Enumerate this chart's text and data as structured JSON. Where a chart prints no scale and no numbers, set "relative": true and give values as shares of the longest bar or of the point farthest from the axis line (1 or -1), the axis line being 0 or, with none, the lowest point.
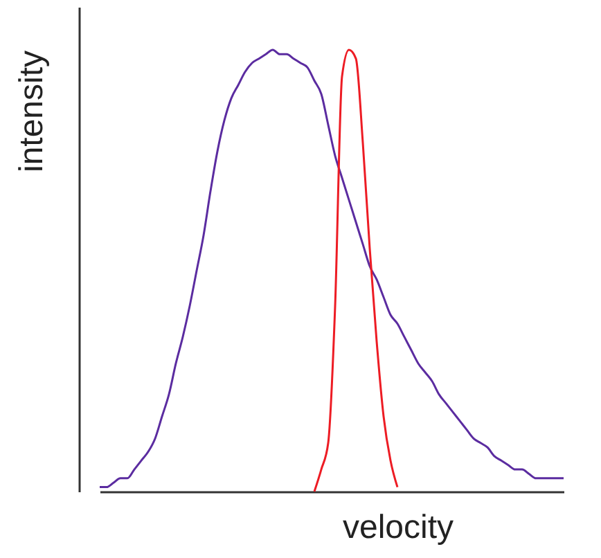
{
  "chart_data": {
    "type": "line",
    "relative": true,
    "xlabel": "velocity",
    "ylabel": "intensity",
    "categories": [
      null,
      null,
      null,
      null,
      null,
      null,
      null,
      null,
      null,
      null,
      null,
      null,
      null,
      null,
      null,
      null,
      null,
      null,
      null,
      null,
      null,
      null,
      null,
      null,
      null,
      null,
      null,
      null,
      null,
      null,
      null,
      null,
      null,
      null,
      null,
      null,
      null,
      null,
      null,
      null,
      null,
      null,
      null,
      null,
      null,
      null,
      null,
      null,
      null,
      null,
      null,
      null,
      null,
      null,
      null,
      null,
      null,
      null,
      null,
      null,
      null,
      null,
      null,
      null,
      null,
      null,
      null,
      null
    ],
    "series": [
      {
        "color": "#5b2ca0",
        "values": [
          0.01,
          0.01,
          0.02,
          0.03,
          0.03,
          0.05,
          0.07,
          0.09,
          0.12,
          0.17,
          0.22,
          0.29,
          0.35,
          0.42,
          0.5,
          0.58,
          0.68,
          0.77,
          0.84,
          0.89,
          0.92,
          0.95,
          0.97,
          0.98,
          0.99,
          1,
          0.99,
          0.99,
          0.98,
          0.97,
          0.96,
          0.93,
          0.9,
          0.83,
          0.76,
          0.71,
          0.66,
          0.61,
          0.56,
          0.51,
          0.48,
          0.44,
          0.4,
          0.38,
          0.35,
          0.32,
          0.29,
          0.27,
          0.25,
          0.22,
          0.2,
          0.18,
          0.16,
          0.14,
          0.12,
          0.11,
          0.1,
          0.08,
          0.07,
          0.06,
          0.05,
          0.05,
          0.04,
          0.03,
          0.03,
          0.03,
          0.03,
          0.03
        ]
      },
      {
        "color": "#ed1c24",
        "values": [
          null,
          null,
          null,
          null,
          null,
          null,
          null,
          null,
          null,
          null,
          null,
          null,
          null,
          null,
          null,
          null,
          null,
          null,
          null,
          null,
          null,
          null,
          null,
          null,
          null,
          null,
          null,
          null,
          null,
          null,
          null,
          0,
          0.05,
          0.11,
          0.42,
          0.94,
          1,
          0.98,
          0.79,
          0.55,
          0.34,
          0.17,
          0.07,
          0.01,
          null,
          null,
          null,
          null,
          null,
          null,
          null,
          null,
          null,
          null,
          null,
          null,
          null,
          null,
          null,
          null,
          null,
          null,
          null,
          null,
          null,
          null,
          null,
          null
        ]
      }
    ]
  }
}
